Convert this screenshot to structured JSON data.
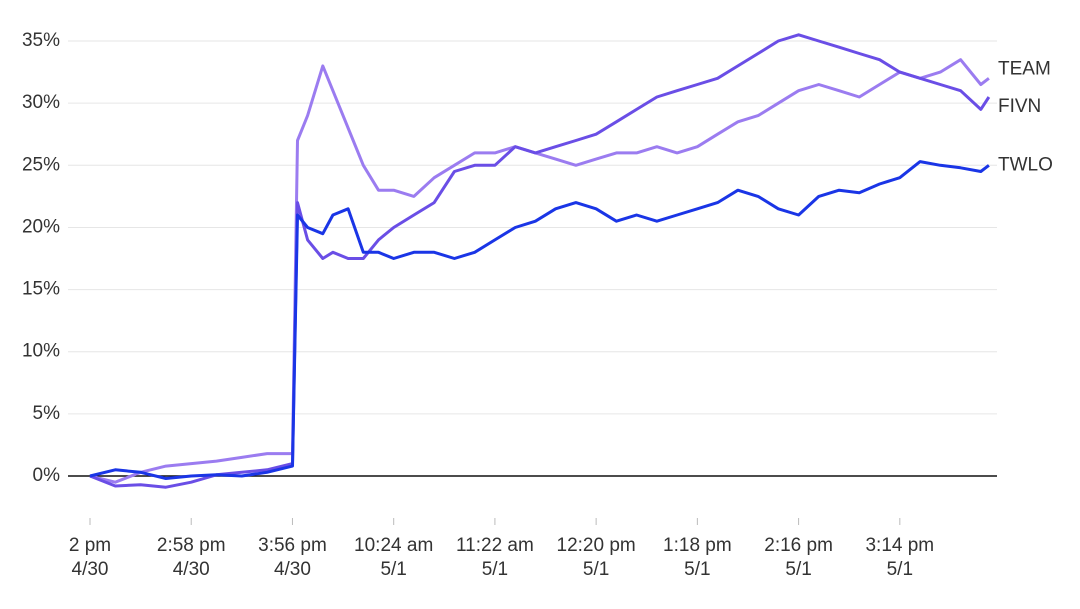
{
  "chart_data": {
    "type": "line",
    "x": [
      0,
      0.25,
      0.5,
      0.75,
      1,
      1.25,
      1.5,
      1.75,
      2.0,
      2.05,
      2.15,
      2.3,
      2.4,
      2.55,
      2.7,
      2.85,
      3.0,
      3.2,
      3.4,
      3.6,
      3.8,
      4.0,
      4.2,
      4.4,
      4.6,
      4.8,
      5.0,
      5.2,
      5.4,
      5.6,
      5.8,
      6.0,
      6.2,
      6.4,
      6.6,
      6.8,
      7.0,
      7.2,
      7.4,
      7.6,
      7.8,
      8.0,
      8.2,
      8.4,
      8.6,
      8.8,
      8.88
    ],
    "series": [
      {
        "name": "TEAM",
        "color": "#9b7cf0",
        "values": [
          0,
          -0.5,
          0.3,
          0.8,
          1.0,
          1.2,
          1.5,
          1.8,
          1.8,
          27,
          29,
          33,
          31,
          28,
          25,
          23,
          23,
          22.5,
          24,
          25,
          26,
          26,
          26.5,
          26,
          25.5,
          25,
          25.5,
          26,
          26,
          26.5,
          26,
          26.5,
          27.5,
          28.5,
          29,
          30,
          31,
          31.5,
          31,
          30.5,
          31.5,
          32.5,
          32,
          32.5,
          33.5,
          31.5,
          32
        ]
      },
      {
        "name": "FIVN",
        "color": "#6a4ee6",
        "values": [
          0,
          -0.8,
          -0.7,
          -0.9,
          -0.5,
          0.1,
          0.3,
          0.5,
          1.0,
          22,
          19,
          17.5,
          18,
          17.5,
          17.5,
          19,
          20,
          21,
          22,
          24.5,
          25,
          25,
          26.5,
          26,
          26.5,
          27,
          27.5,
          28.5,
          29.5,
          30.5,
          31,
          31.5,
          32,
          33,
          34,
          35,
          35.5,
          35,
          34.5,
          34,
          33.5,
          32.5,
          32,
          31.5,
          31,
          29.5,
          30.5
        ]
      },
      {
        "name": "TWLO",
        "color": "#1a35e6",
        "values": [
          0,
          0.5,
          0.3,
          -0.2,
          0,
          0.1,
          0,
          0.3,
          0.8,
          21,
          20,
          19.5,
          21,
          21.5,
          18,
          18,
          17.5,
          18,
          18,
          17.5,
          18,
          19,
          20,
          20.5,
          21.5,
          22,
          21.5,
          20.5,
          21,
          20.5,
          21,
          21.5,
          22,
          23,
          22.5,
          21.5,
          21,
          22.5,
          23,
          22.8,
          23.5,
          24,
          25.3,
          25,
          24.8,
          24.5,
          25
        ]
      }
    ],
    "xlim": [
      0,
      8.96
    ],
    "xticks": [
      {
        "value": 0,
        "label": "2 pm\n4/30"
      },
      {
        "value": 1,
        "label": "2:58 pm\n4/30"
      },
      {
        "value": 2,
        "label": "3:56 pm\n4/30"
      },
      {
        "value": 3,
        "label": "10:24 am\n5/1"
      },
      {
        "value": 4,
        "label": "11:22 am\n5/1"
      },
      {
        "value": 5,
        "label": "12:20 pm\n5/1"
      },
      {
        "value": 6,
        "label": "1:18 pm\n5/1"
      },
      {
        "value": 7,
        "label": "2:16 pm\n5/1"
      },
      {
        "value": 8,
        "label": "3:14 pm\n5/1"
      }
    ],
    "ylim": [
      -3,
      36
    ],
    "yticks": [
      {
        "value": 0,
        "label": "0%"
      },
      {
        "value": 5,
        "label": "5%"
      },
      {
        "value": 10,
        "label": "10%"
      },
      {
        "value": 15,
        "label": "15%"
      },
      {
        "value": 20,
        "label": "20%"
      },
      {
        "value": 25,
        "label": "25%"
      },
      {
        "value": 30,
        "label": "30%"
      },
      {
        "value": 35,
        "label": "35%"
      }
    ],
    "grid": true
  }
}
